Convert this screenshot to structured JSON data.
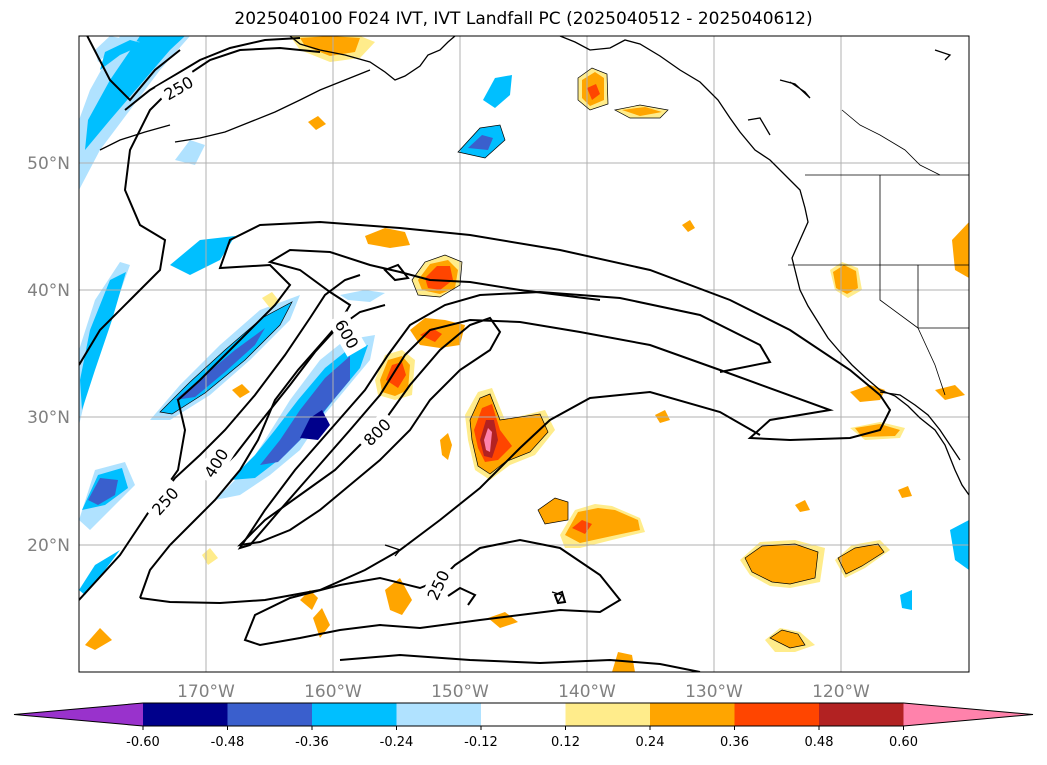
{
  "title": "2025040100 F024 IVT, IVT Landfall PC (2025040512 - 2025040612)",
  "latitude_labels": [
    "20°N",
    "30°N",
    "40°N",
    "50°N"
  ],
  "longitude_labels": [
    "170°W",
    "160°W",
    "150°W",
    "140°W",
    "130°W",
    "120°W"
  ],
  "contour_labels": [
    "250",
    "400",
    "600",
    "800",
    "250",
    "250"
  ],
  "colorbar": {
    "tick_labels": [
      "-0.60",
      "-0.48",
      "-0.36",
      "-0.24",
      "-0.12",
      "0.12",
      "0.24",
      "0.36",
      "0.48",
      "0.60"
    ],
    "colors": [
      "#9932cc",
      "#00008b",
      "#3a5fcd",
      "#00bfff",
      "#b0e2ff",
      "#ffffff",
      "#ffec8b",
      "#ffa500",
      "#ff4500",
      "#b22222",
      "#ff82ab"
    ]
  }
}
